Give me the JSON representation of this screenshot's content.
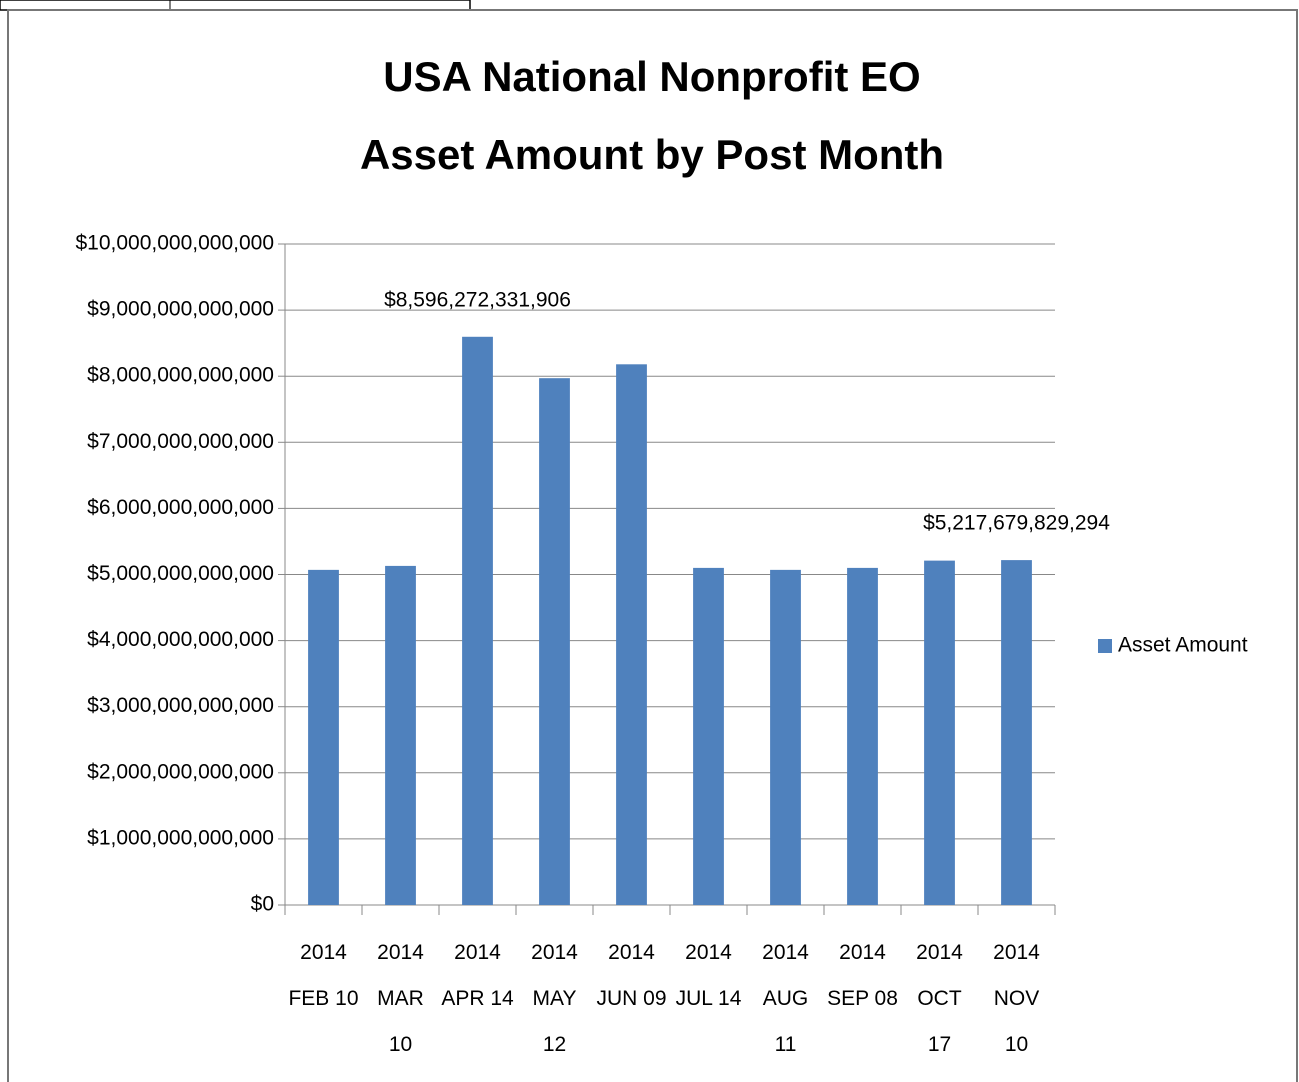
{
  "chart_data": {
    "type": "bar",
    "title": "USA National Nonprofit EO",
    "subtitle": "Asset Amount by Post Month",
    "categories": [
      "2014\nFEB 10",
      "2014\nMAR\n10",
      "2014\nAPR 14",
      "2014\nMAY\n12",
      "2014\nJUN 09",
      "2014\nJUL 14",
      "2014\nAUG\n11",
      "2014\nSEP 08",
      "2014\nOCT\n17",
      "2014\nNOV\n10"
    ],
    "series": [
      {
        "name": "Asset Amount",
        "color": "#4f81bd",
        "values": [
          5070000000000,
          5130000000000,
          8596272331906,
          7970000000000,
          8180000000000,
          5100000000000,
          5070000000000,
          5100000000000,
          5210000000000,
          5217679829294
        ],
        "value_labels": [
          null,
          null,
          "$8,596,272,331,906",
          null,
          null,
          null,
          null,
          null,
          null,
          "$5,217,679,829,294"
        ]
      }
    ],
    "ylim": [
      0,
      10000000000000
    ],
    "yticks": [
      {
        "value": 0,
        "label": "$0"
      },
      {
        "value": 1000000000000,
        "label": "$1,000,000,000,000"
      },
      {
        "value": 2000000000000,
        "label": "$2,000,000,000,000"
      },
      {
        "value": 3000000000000,
        "label": "$3,000,000,000,000"
      },
      {
        "value": 4000000000000,
        "label": "$4,000,000,000,000"
      },
      {
        "value": 5000000000000,
        "label": "$5,000,000,000,000"
      },
      {
        "value": 6000000000000,
        "label": "$6,000,000,000,000"
      },
      {
        "value": 7000000000000,
        "label": "$7,000,000,000,000"
      },
      {
        "value": 8000000000000,
        "label": "$8,000,000,000,000"
      },
      {
        "value": 9000000000000,
        "label": "$9,000,000,000,000"
      },
      {
        "value": 10000000000000,
        "label": "$10,000,000,000,000"
      }
    ],
    "grid": true,
    "legend": "right"
  }
}
